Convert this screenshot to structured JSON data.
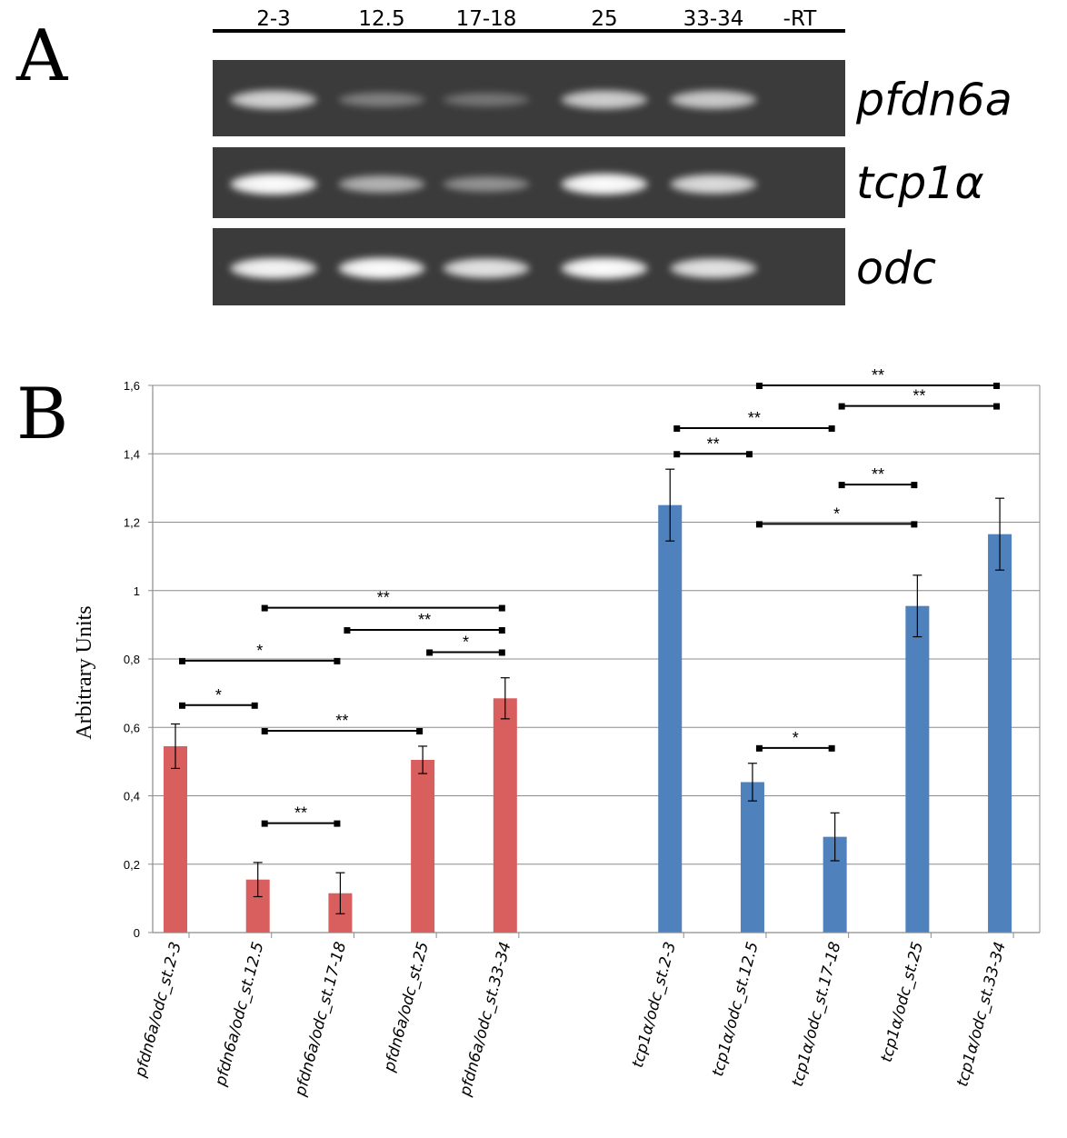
{
  "panels": {
    "a_letter": "A",
    "b_letter": "B"
  },
  "gel": {
    "lanes": [
      "2-3",
      "12.5",
      "17-18",
      "25",
      "33-34",
      "-RT"
    ],
    "rows": [
      {
        "gene": "pfdn6a",
        "intensity": [
          0.75,
          0.25,
          0.18,
          0.72,
          0.7,
          0
        ]
      },
      {
        "gene": "tcp1α",
        "intensity": [
          1.0,
          0.55,
          0.35,
          1.0,
          0.8,
          0
        ]
      },
      {
        "gene": "odc",
        "intensity": [
          0.95,
          1.0,
          0.85,
          1.0,
          0.85,
          0
        ]
      }
    ]
  },
  "chart_data": {
    "type": "bar",
    "ylabel": "Arbitrary Units",
    "xlabel": "",
    "ylim": [
      0,
      1.6
    ],
    "yticks": [
      "0",
      "0,2",
      "0,4",
      "0,6",
      "0,8",
      "1",
      "1,2",
      "1,4",
      "1,6"
    ],
    "grid": true,
    "categories": [
      "pfdn6a/odc_st.2-3",
      "pfdn6a/odc_st.12.5",
      "pfdn6a/odc_st.17-18",
      "pfdn6a/odc_st.25",
      "pfdn6a/odc_st.33-34",
      "tcp1α/odc_st.2-3",
      "tcp1α/odc_st.12.5",
      "tcp1α/odc_st.17-18",
      "tcp1α/odc_st.25",
      "tcp1α/odc_st.33-34"
    ],
    "slots": [
      0,
      1,
      2,
      3,
      4,
      6,
      7,
      8,
      9,
      10
    ],
    "values": [
      0.545,
      0.155,
      0.115,
      0.505,
      0.685,
      1.25,
      0.44,
      0.28,
      0.955,
      1.165
    ],
    "errors": [
      0.065,
      0.05,
      0.06,
      0.04,
      0.06,
      0.105,
      0.055,
      0.07,
      0.09,
      0.105
    ],
    "colors": [
      "#d95f5f",
      "#d95f5f",
      "#d95f5f",
      "#d95f5f",
      "#d95f5f",
      "#4f81bd",
      "#4f81bd",
      "#4f81bd",
      "#4f81bd",
      "#4f81bd"
    ],
    "significance": [
      {
        "from": 0,
        "to": 1,
        "y": 0.665,
        "label": "*"
      },
      {
        "from": 0,
        "to": 2,
        "y": 0.795,
        "label": "*"
      },
      {
        "from": 1,
        "to": 2,
        "y": 0.32,
        "label": "**"
      },
      {
        "from": 1,
        "to": 3,
        "y": 0.59,
        "label": "**"
      },
      {
        "from": 1,
        "to": 4,
        "y": 0.95,
        "label": "**"
      },
      {
        "from": 2,
        "to": 4,
        "y": 0.885,
        "label": "**"
      },
      {
        "from": 3,
        "to": 4,
        "y": 0.82,
        "label": "*"
      },
      {
        "from": 5,
        "to": 6,
        "y": 1.4,
        "label": "**"
      },
      {
        "from": 5,
        "to": 7,
        "y": 1.475,
        "label": "**"
      },
      {
        "from": 6,
        "to": 9,
        "y": 1.6,
        "label": "**"
      },
      {
        "from": 7,
        "to": 9,
        "y": 1.54,
        "label": "**"
      },
      {
        "from": 7,
        "to": 8,
        "y": 1.31,
        "label": "**"
      },
      {
        "from": 6,
        "to": 8,
        "y": 1.195,
        "label": "*"
      },
      {
        "from": 6,
        "to": 7,
        "y": 0.54,
        "label": "*"
      }
    ]
  }
}
